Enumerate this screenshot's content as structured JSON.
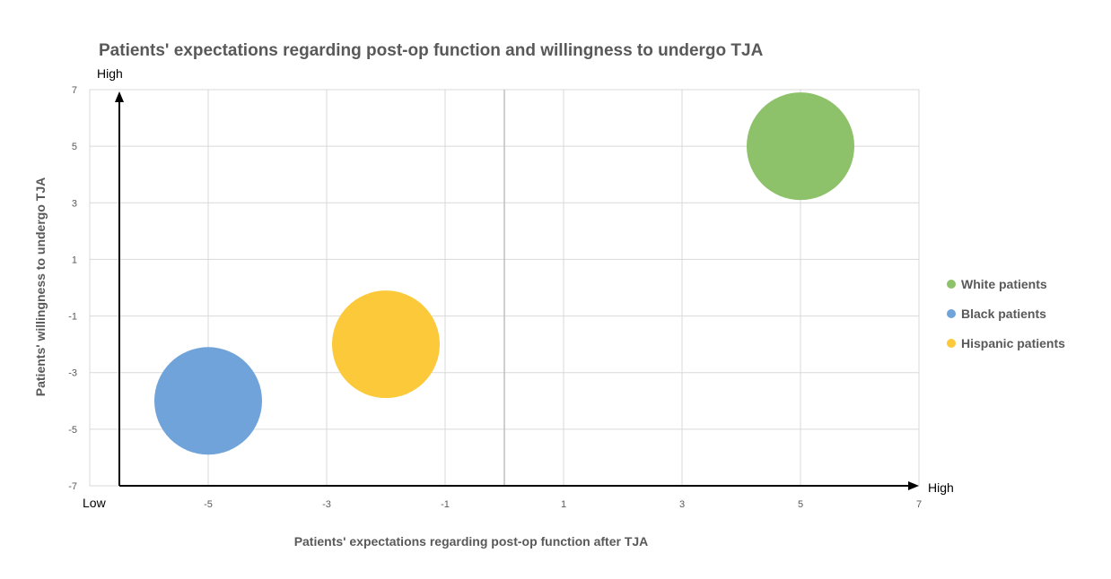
{
  "chart_data": {
    "type": "bubble",
    "title": "Patients' expectations regarding post-op function and willingness to undergo TJA",
    "xlabel": "Patients' expectations regarding post-op function after TJA",
    "ylabel": "Patients' willingness to undergo TJA",
    "xlim": [
      -7,
      7
    ],
    "ylim": [
      -7,
      7
    ],
    "x_ticks": [
      -5,
      -3,
      -1,
      1,
      3,
      5,
      7
    ],
    "y_ticks": [
      -7,
      -5,
      -3,
      -1,
      1,
      3,
      5,
      7
    ],
    "x_axis_low_label": "Low",
    "x_axis_high_label": "High",
    "y_axis_high_label": "High",
    "grid": true,
    "legend_position": "right",
    "series": [
      {
        "name": "White patients",
        "x": 5,
        "y": 5,
        "color": "#8dc16a"
      },
      {
        "name": "Black patients",
        "x": -5,
        "y": -4,
        "color": "#6fa3d9"
      },
      {
        "name": "Hispanic patients",
        "x": -2,
        "y": -2,
        "color": "#fcc93a"
      }
    ]
  }
}
